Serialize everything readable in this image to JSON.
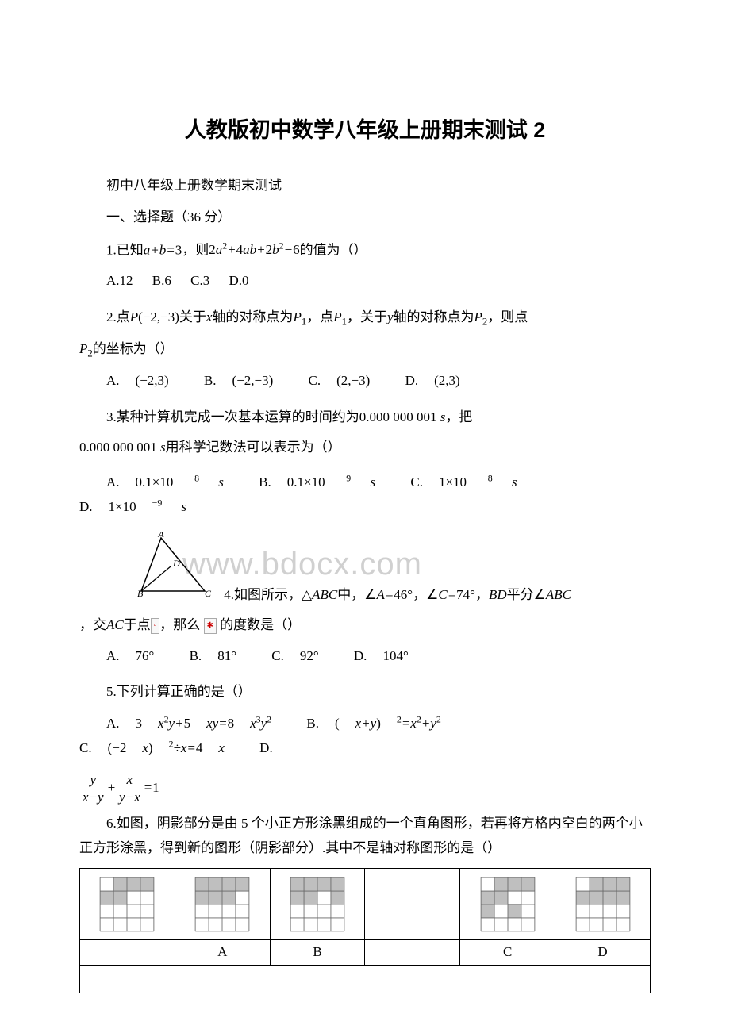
{
  "title": "人教版初中数学八年级上册期末测试 2",
  "subtitle": "初中八年级上册数学期末测试",
  "section1": "一、选择题（36 分）",
  "q1": {
    "num": "1.",
    "text1": "已知",
    "expr1": "a+b=3",
    "text2": "，则",
    "expr2": "2a²+4ab+2b²−6",
    "text3": "的值为（）",
    "optA": "A.12",
    "optB": "B.6",
    "optC": "C.3",
    "optD": "D.0"
  },
  "q2": {
    "num": "2.",
    "text1": "点",
    "expr1": "P(−2,−3)",
    "text2": "关于",
    "var1": "x",
    "text3": "轴的对称点为",
    "p1": "P",
    "sub1": "1",
    "text4": "，点",
    "p2": "P",
    "sub2": "1",
    "text5": "，关于",
    "var2": "y",
    "text6": "轴的对称点为",
    "p3": "P",
    "sub3": "2",
    "text7": "，则点",
    "p4": "P",
    "sub4": "2",
    "text8": "的坐标为（）",
    "optA": "A.",
    "valA": "(−2,3)",
    "optB": "B.",
    "valB": "(−2,−3)",
    "optC": "C.",
    "valC": "(2,−3)",
    "optD": "D.",
    "valD": "(2,3)"
  },
  "q3": {
    "num": "3.",
    "text1": "某种计算机完成一次基本运算的时间约为",
    "expr1": "0.000 000 001 s",
    "text2": "，把",
    "expr2": "0.000 000 001 s",
    "text3": "用科学记数法可以表示为（）",
    "optA": "A.",
    "valA_base": "0.1×10",
    "valA_exp": "−8",
    "valA_unit": " s",
    "optB": "B.",
    "valB_base": "0.1×10",
    "valB_exp": "−9",
    "valB_unit": " s",
    "optC": "C.",
    "valC_base": "1×10",
    "valC_exp": "−8",
    "valC_unit": " s",
    "optD": "D.",
    "valD_base": "1×10",
    "valD_exp": "−9",
    "valD_unit": " s"
  },
  "q4": {
    "num": "4.",
    "text1": "如图所示，",
    "tri": "△ABC",
    "text2": "中，",
    "ang1": "∠A=46°",
    "text3": "，",
    "ang2": "∠C=74°",
    "text4": "，",
    "bd": "BD",
    "text5": "平分",
    "ang3": "∠ABC",
    "text6": "，交",
    "ac": "AC",
    "text7": "于点",
    "icon1": "D",
    "text8": "，那么",
    "icon2": "✱",
    "text9": "的度数是（）",
    "optA": "A.",
    "valA": "76°",
    "optB": "B.",
    "valB": "81°",
    "optC": "C.",
    "valC": "92°",
    "optD": "D.",
    "valD": "104°",
    "watermark": "www.bdocx.com",
    "labelA": "A",
    "labelB": "B",
    "labelC": "C",
    "labelD": "D"
  },
  "q5": {
    "num": "5.",
    "text1": "下列计算正确的是（）",
    "optA": "A.",
    "valA": "3x²y+5xy=8x³y²",
    "optB": "B.",
    "valB": "(x+y)²=x²+y²",
    "optC": "C.",
    "valC": "(−2x)²÷x=4x",
    "optD": "D.",
    "fracD_num1": "y",
    "fracD_den1": "x−y",
    "plus": "+",
    "fracD_num2": "x",
    "fracD_den2": "y−x",
    "eq1": "=1"
  },
  "q6": {
    "num": "6.",
    "text1": "如图，阴影部分是由 5 个小正方形涂黑组成的一个直角图形，若再将方格内空白的两个小正方形涂黑，得到新的图形（阴影部分）.其中不是轴对称图形的是（）",
    "labelA": "A",
    "labelB": "B",
    "labelC": "C",
    "labelD": "D"
  },
  "gridStyle": {
    "cellSize": 16,
    "cols": 4,
    "rows": 4,
    "fillColor": "#bfbfbf",
    "strokeColor": "#666666",
    "original": [
      [
        0,
        1
      ],
      [
        1,
        1
      ],
      [
        1,
        0
      ],
      [
        2,
        0
      ],
      [
        3,
        0
      ]
    ],
    "figA": [
      [
        0,
        0
      ],
      [
        0,
        1
      ],
      [
        1,
        1
      ],
      [
        1,
        0
      ],
      [
        2,
        0
      ],
      [
        3,
        0
      ],
      [
        2,
        1
      ]
    ],
    "figB": [
      [
        0,
        1
      ],
      [
        0,
        0
      ],
      [
        1,
        1
      ],
      [
        1,
        0
      ],
      [
        2,
        0
      ],
      [
        3,
        0
      ],
      [
        3,
        1
      ]
    ],
    "figC": [
      [
        0,
        1
      ],
      [
        0,
        2
      ],
      [
        1,
        1
      ],
      [
        1,
        0
      ],
      [
        2,
        0
      ],
      [
        3,
        0
      ],
      [
        2,
        2
      ]
    ],
    "figD": [
      [
        0,
        1
      ],
      [
        1,
        1
      ],
      [
        1,
        0
      ],
      [
        2,
        0
      ],
      [
        3,
        0
      ],
      [
        2,
        1
      ],
      [
        3,
        1
      ]
    ]
  }
}
